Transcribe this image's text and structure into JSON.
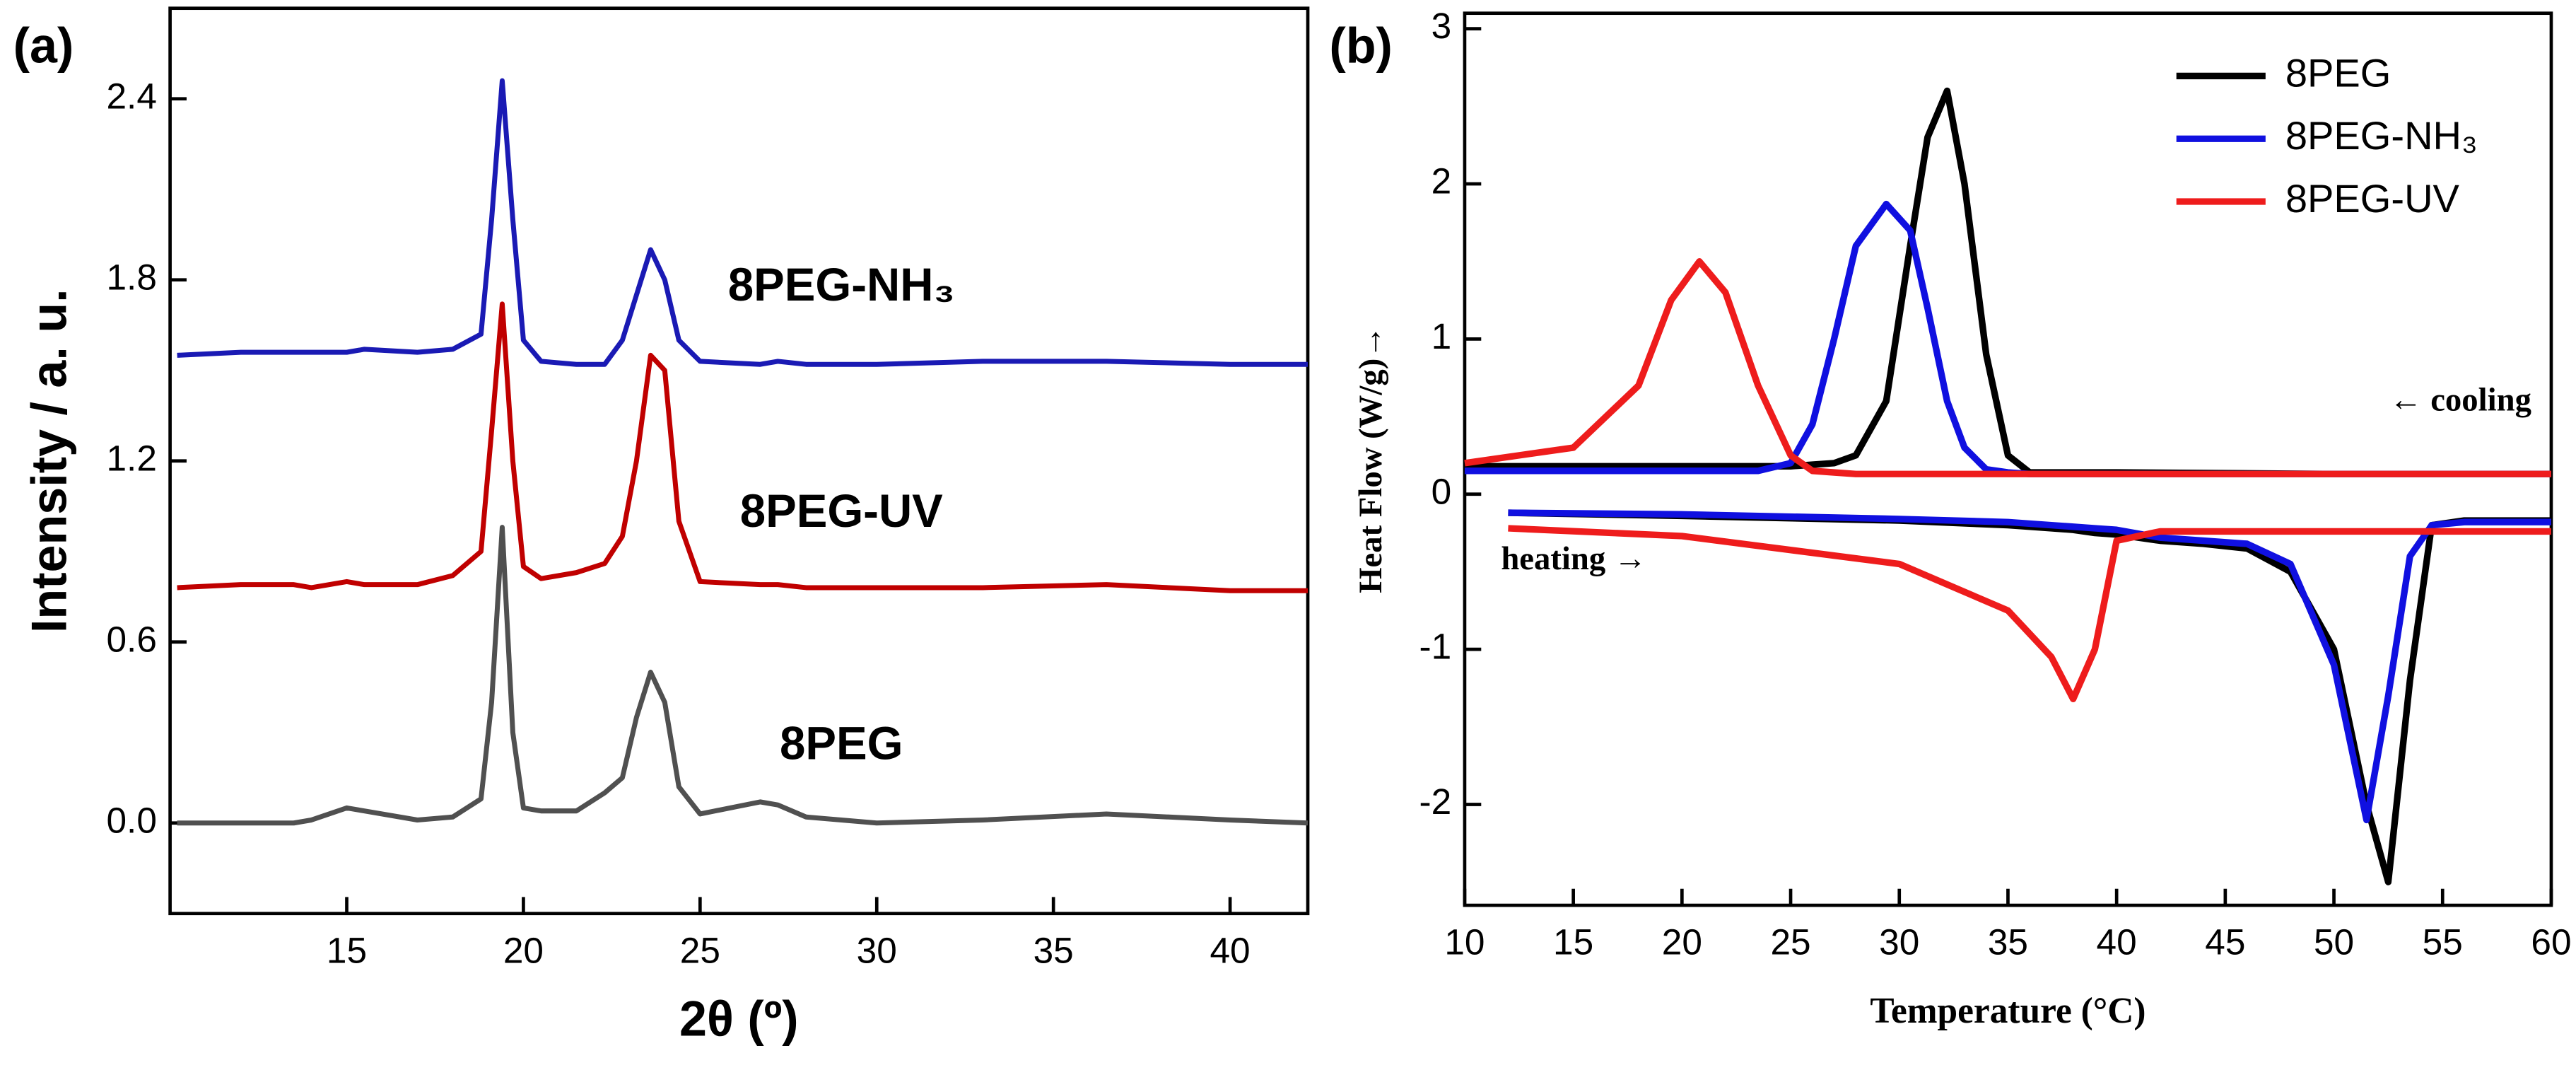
{
  "chart_data": [
    {
      "type": "line",
      "panel_label": "(a)",
      "xlabel": "2θ (º)",
      "ylabel": "Intensity / a. u.",
      "legend": "inline",
      "xlim": [
        10,
        42.2
      ],
      "xticks": [
        15,
        20,
        25,
        30,
        35,
        40
      ],
      "ylim": [
        -0.3,
        2.7
      ],
      "yticks": [
        {
          "value": 0,
          "label": "0.0"
        },
        0.6,
        1.2,
        1.8,
        2.4
      ],
      "x": [
        10.2,
        12,
        13.5,
        14,
        15,
        15.5,
        17,
        18,
        18.8,
        19.1,
        19.4,
        19.7,
        20,
        20.5,
        21.5,
        22.3,
        22.8,
        23.2,
        23.6,
        24,
        24.4,
        25,
        26.7,
        27.2,
        28,
        30,
        33,
        36.5,
        40,
        42.2
      ],
      "series": [
        {
          "name": "8PEG-NH₃",
          "color": "#1a1ab4",
          "values": [
            1.55,
            1.56,
            1.56,
            1.56,
            1.56,
            1.57,
            1.56,
            1.57,
            1.62,
            2.0,
            2.46,
            2.0,
            1.6,
            1.53,
            1.52,
            1.52,
            1.6,
            1.75,
            1.9,
            1.8,
            1.6,
            1.53,
            1.52,
            1.53,
            1.52,
            1.52,
            1.53,
            1.53,
            1.52,
            1.52
          ]
        },
        {
          "name": "8PEG-UV",
          "color": "#c00000",
          "values": [
            0.78,
            0.79,
            0.79,
            0.78,
            0.8,
            0.79,
            0.79,
            0.82,
            0.9,
            1.3,
            1.72,
            1.2,
            0.85,
            0.81,
            0.83,
            0.86,
            0.95,
            1.2,
            1.55,
            1.5,
            1.0,
            0.8,
            0.79,
            0.79,
            0.78,
            0.78,
            0.78,
            0.79,
            0.77,
            0.77
          ]
        },
        {
          "name": "8PEG",
          "color": "#505050",
          "values": [
            0,
            0,
            0,
            0.01,
            0.05,
            0.04,
            0.01,
            0.02,
            0.08,
            0.4,
            0.98,
            0.3,
            0.05,
            0.04,
            0.04,
            0.1,
            0.15,
            0.35,
            0.5,
            0.4,
            0.12,
            0.03,
            0.07,
            0.06,
            0.02,
            0,
            0.01,
            0.03,
            0.01,
            0
          ]
        }
      ]
    },
    {
      "type": "line",
      "panel_label": "(b)",
      "xlabel": "Temperature (°C)",
      "ylabel": "Heat Flow (W/g)→",
      "legend": "top-right",
      "annotations": [
        "← cooling",
        "heating →"
      ],
      "xlim": [
        10,
        60
      ],
      "xticks": [
        10,
        15,
        20,
        25,
        30,
        35,
        40,
        45,
        50,
        55,
        60
      ],
      "ylim": [
        -2.65,
        3.1
      ],
      "yticks": [
        -2,
        -1,
        0,
        1,
        2,
        3
      ],
      "x": [
        10,
        15,
        18,
        19.5,
        20.8,
        22,
        23.5,
        25,
        26,
        27,
        28,
        29.4,
        30.5,
        31.3,
        32.2,
        33,
        34,
        35,
        36,
        40,
        50,
        60,
        10,
        12,
        20,
        30,
        35,
        37,
        38,
        39,
        40,
        42,
        44,
        46,
        48,
        50,
        51.5,
        52.5,
        53.5,
        54.5,
        56,
        60
      ],
      "series": [
        {
          "name": "8PEG",
          "color": "#000000",
          "values": [
            0.18,
            0.18,
            0.18,
            0.18,
            0.18,
            0.18,
            0.18,
            0.18,
            0.19,
            0.2,
            0.25,
            0.6,
            1.6,
            2.3,
            2.6,
            2.0,
            0.9,
            0.25,
            0.14,
            0.14,
            0.13,
            0.13,
            null,
            -0.12,
            -0.14,
            -0.17,
            -0.2,
            -0.22,
            -0.23,
            -0.25,
            -0.26,
            -0.3,
            -0.32,
            -0.35,
            -0.5,
            -1.0,
            -2.0,
            -2.5,
            -1.2,
            -0.2,
            -0.17,
            -0.17
          ]
        },
        {
          "name": "8PEG-NH₃",
          "color": "#1010e0",
          "values": [
            0.15,
            0.15,
            0.15,
            0.15,
            0.15,
            0.15,
            0.15,
            0.2,
            0.45,
            1.0,
            1.6,
            1.87,
            1.7,
            1.2,
            0.6,
            0.3,
            0.16,
            0.14,
            0.13,
            0.13,
            0.13,
            0.13,
            null,
            -0.12,
            -0.13,
            -0.16,
            -0.18,
            -0.2,
            -0.21,
            -0.22,
            -0.23,
            -0.28,
            -0.3,
            -0.32,
            -0.45,
            -1.1,
            -2.1,
            -1.3,
            -0.4,
            -0.2,
            -0.18,
            -0.18
          ]
        },
        {
          "name": "8PEG-UV",
          "color": "#ee1c1c",
          "values": [
            0.2,
            0.3,
            0.7,
            1.25,
            1.5,
            1.3,
            0.7,
            0.25,
            0.15,
            0.14,
            0.13,
            0.13,
            0.13,
            0.13,
            0.13,
            0.13,
            0.13,
            0.13,
            0.13,
            0.13,
            0.13,
            0.13,
            null,
            -0.22,
            -0.27,
            -0.45,
            -0.75,
            -1.05,
            -1.32,
            -1.0,
            -0.3,
            -0.24,
            -0.24,
            -0.24,
            -0.24,
            -0.24,
            -0.24,
            -0.24,
            -0.24,
            -0.24,
            -0.24,
            -0.24
          ]
        }
      ]
    }
  ]
}
